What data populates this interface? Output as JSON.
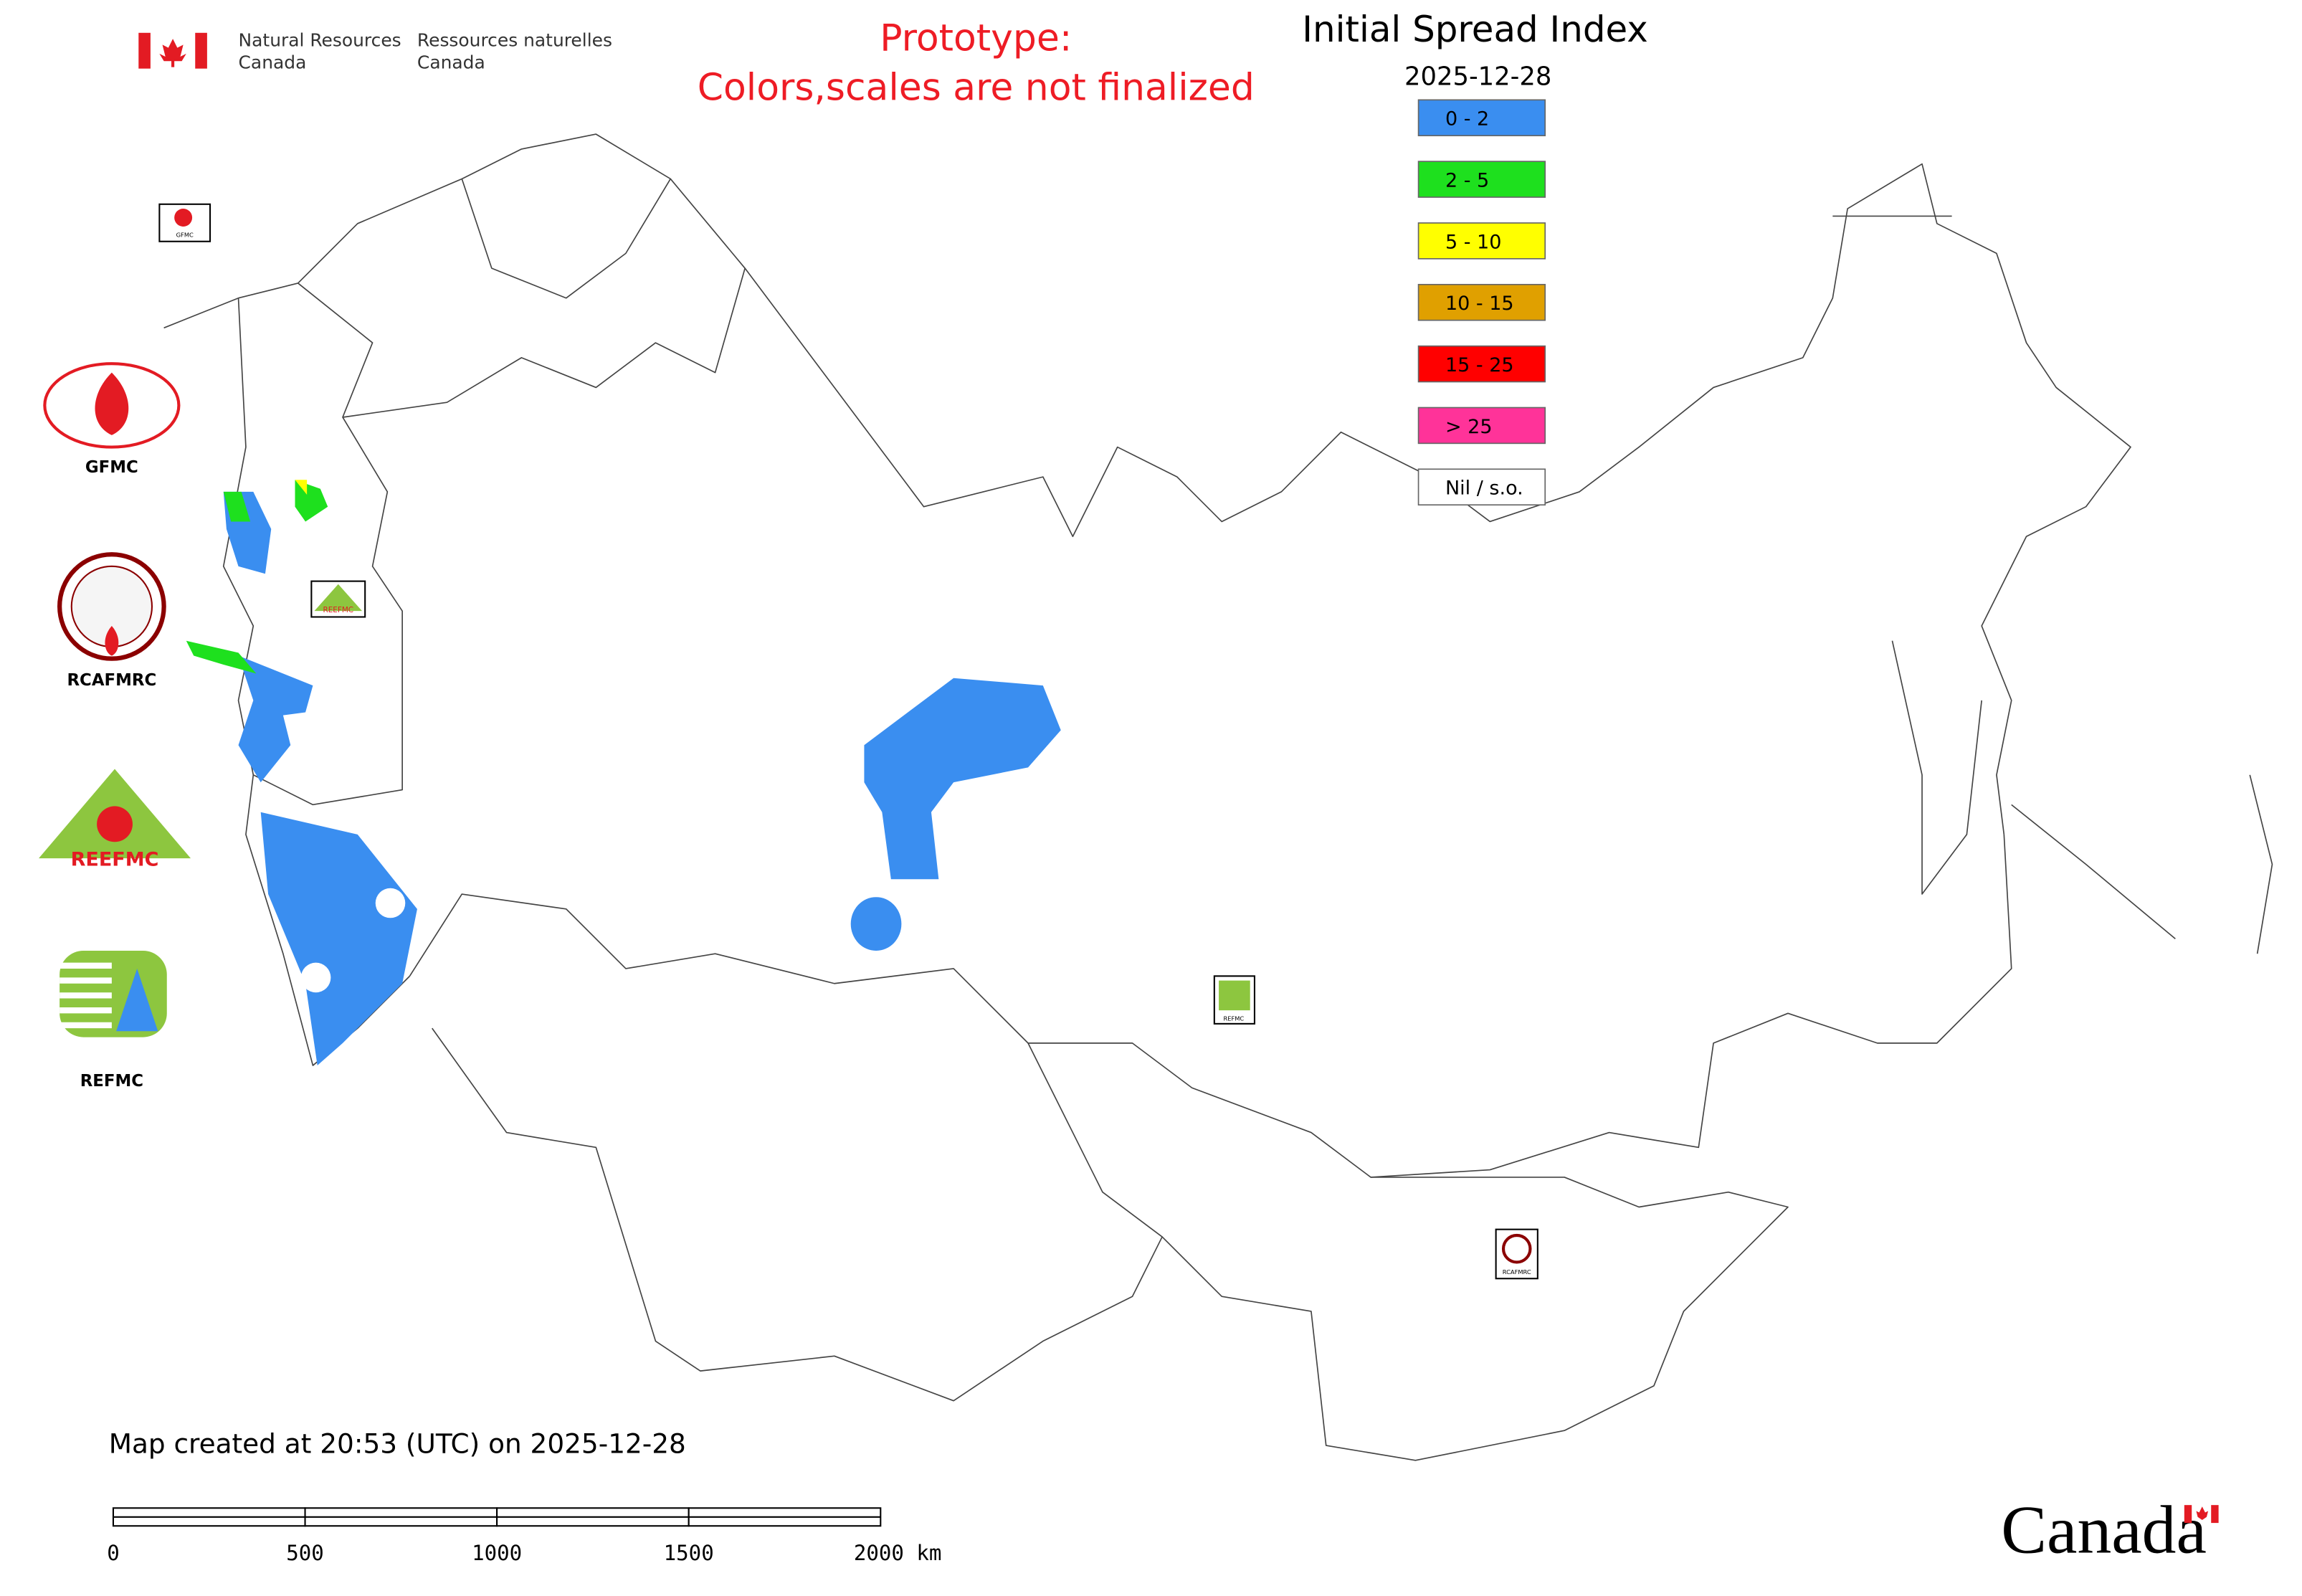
{
  "header": {
    "agency_en": [
      "Natural Resources",
      "Canada"
    ],
    "agency_fr": [
      "Ressources naturelles",
      "Canada"
    ]
  },
  "notice": [
    "Prototype:",
    "Colors,scales are not finalized"
  ],
  "legend": {
    "title": "Initial Spread Index",
    "date": "2025-12-28",
    "items": [
      {
        "label": "0 - 2",
        "color": "#3a8ef0"
      },
      {
        "label": "2 - 5",
        "color": "#1ee01e"
      },
      {
        "label": "5 - 10",
        "color": "#ffff00"
      },
      {
        "label": "10 - 15",
        "color": "#e0a000"
      },
      {
        "label": "15 - 25",
        "color": "#ff0000"
      },
      {
        "label": "> 25",
        "color": "#ff3399"
      },
      {
        "label": "Nil / s.o.",
        "color": "#ffffff"
      }
    ]
  },
  "logos": [
    "GFMC",
    "RCAFMRC",
    "REEFMC",
    "REFMC"
  ],
  "map_markers": [
    "GFMC",
    "REEFMC",
    "REFMC",
    "RCAFMRC"
  ],
  "footer": {
    "created": "Map created at 20:53 (UTC) on 2025-12-28",
    "scale_labels": [
      "0",
      "500",
      "1000",
      "1500",
      "2000 km"
    ],
    "wordmark": "Canada"
  }
}
